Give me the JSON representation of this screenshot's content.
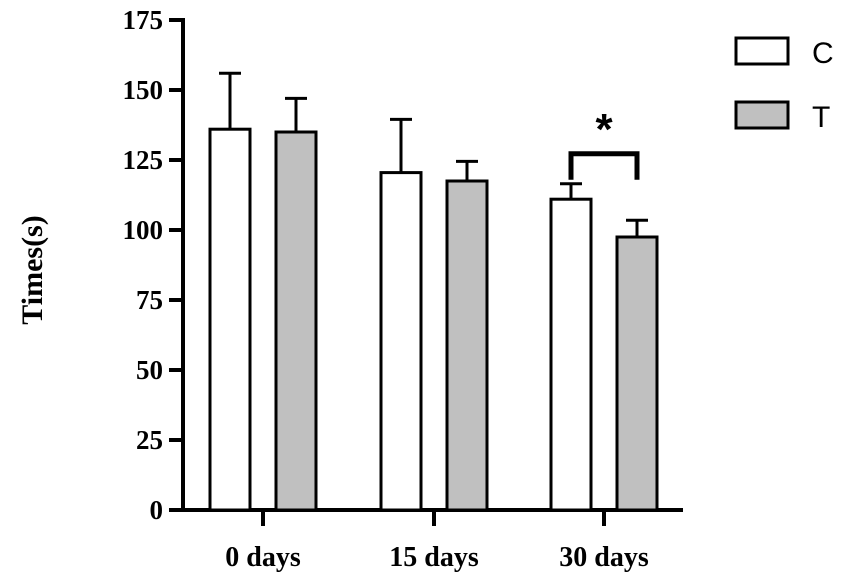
{
  "chart_data": {
    "type": "bar",
    "categories": [
      "0 days",
      "15 days",
      "30 days"
    ],
    "series": [
      {
        "name": "C",
        "values": [
          136,
          120.5,
          111
        ],
        "errors": [
          20,
          19,
          5.5
        ],
        "color": "#ffffff"
      },
      {
        "name": "T",
        "values": [
          135,
          117.5,
          97.5
        ],
        "errors": [
          12,
          7,
          6
        ],
        "color": "#c0c0c0"
      }
    ],
    "ylabel": "Times(s)",
    "xlabel": "",
    "ylim": [
      0,
      175
    ],
    "yticks": [
      "0",
      "25",
      "50",
      "75",
      "100",
      "125",
      "150",
      "175"
    ],
    "legend_position": "top-right",
    "grid": false,
    "annotations": [
      {
        "text": "*",
        "category": "30 days",
        "between": [
          "C",
          "T"
        ]
      }
    ],
    "bar_edge_color": "#000000"
  }
}
